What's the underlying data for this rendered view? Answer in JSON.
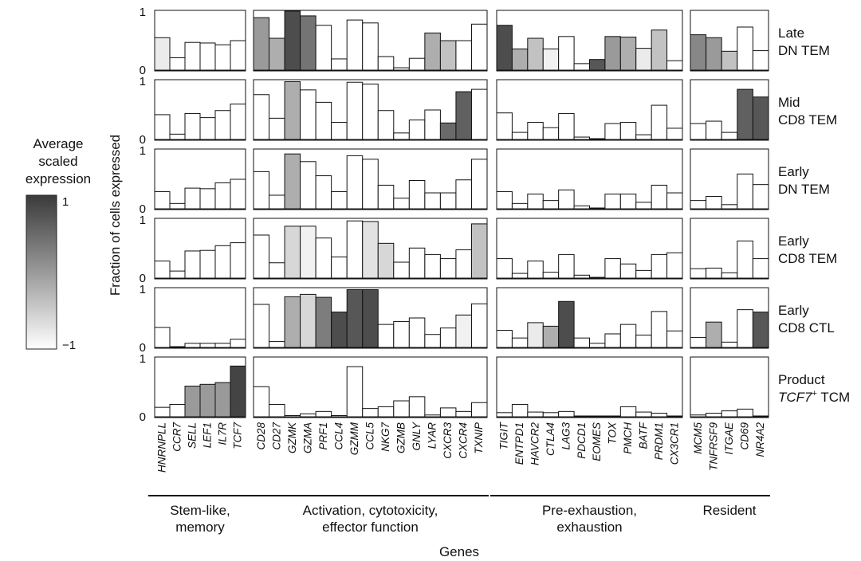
{
  "chart_data": {
    "type": "bar",
    "ylabel": "Fraction of cells expressed",
    "xlabel": "Genes",
    "ylim": [
      0,
      1
    ],
    "yticks": [
      "0",
      "1"
    ],
    "legend": {
      "title_lines": [
        "Average",
        "scaled",
        "expression"
      ],
      "max_label": "1",
      "min_label": "−1",
      "range": [
        -1,
        1
      ],
      "colors": [
        "#ffffff",
        "#9a9a9a",
        "#3a3a3a"
      ]
    },
    "groups": [
      {
        "name_lines": [
          "Stem-like,",
          "memory"
        ],
        "genes": [
          "HNRNPLL",
          "CCR7",
          "SELL",
          "LEF1",
          "IL7R",
          "TCF7"
        ]
      },
      {
        "name_lines": [
          "Activation, cytotoxicity,",
          "effector function"
        ],
        "genes": [
          "CD28",
          "CD27",
          "GZMK",
          "GZMA",
          "PRF1",
          "CCL4",
          "GZMM",
          "CCL5",
          "NKG7",
          "GZMB",
          "GNLY",
          "LYAR",
          "CXCR3",
          "CXCR4",
          "TXNIP"
        ]
      },
      {
        "name_lines": [
          "Pre-exhaustion,",
          "exhaustion"
        ],
        "genes": [
          "TIGIT",
          "ENTPD1",
          "HAVCR2",
          "CTLA4",
          "LAG3",
          "PDCD1",
          "EOMES",
          "TOX",
          "PMCH",
          "BATF",
          "PRDM1",
          "CX3CR1"
        ]
      },
      {
        "name_lines": [
          "Resident"
        ],
        "genes": [
          "MCM5",
          "TNFRSF9",
          "ITGAE",
          "CD69",
          "NR4A2"
        ]
      }
    ],
    "rows": [
      {
        "label_lines": [
          "Late",
          "DN TEM"
        ],
        "color": "#20b2a0",
        "fraction": [
          [
            0.55,
            0.21,
            0.47,
            0.46,
            0.43,
            0.5
          ],
          [
            0.89,
            0.54,
            1.0,
            0.92,
            0.76,
            0.19,
            0.85,
            0.8,
            0.23,
            0.04,
            0.2,
            0.63,
            0.5,
            0.5,
            0.78
          ],
          [
            0.76,
            0.36,
            0.54,
            0.36,
            0.57,
            0.11,
            0.18,
            0.57,
            0.56,
            0.37,
            0.68,
            0.16
          ],
          [
            0.6,
            0.55,
            0.32,
            0.73,
            0.33
          ]
        ],
        "expression": [
          [
            0.1,
            -0.6,
            -1,
            -1,
            -1,
            -1
          ],
          [
            0.5,
            0.4,
            0.9,
            0.7,
            -1,
            -1,
            -1,
            -1,
            -1,
            -1,
            -1,
            0.4,
            0.3,
            -1,
            -1
          ],
          [
            0.9,
            0.4,
            0.3,
            -0.1,
            -0.7,
            -1,
            0.85,
            0.5,
            0.4,
            0.1,
            0.3,
            -1
          ],
          [
            0.6,
            0.5,
            0.3,
            -0.7,
            -1
          ]
        ]
      },
      {
        "label_lines": [
          "Mid",
          "CD8 TEM"
        ],
        "color": "#4a6478",
        "fraction": [
          [
            0.42,
            0.09,
            0.44,
            0.37,
            0.49,
            0.6
          ],
          [
            0.76,
            0.36,
            0.98,
            0.84,
            0.63,
            0.29,
            0.97,
            0.94,
            0.49,
            0.11,
            0.33,
            0.5,
            0.28,
            0.81,
            0.85
          ],
          [
            0.45,
            0.12,
            0.29,
            0.2,
            0.44,
            0.04,
            0.01,
            0.27,
            0.29,
            0.08,
            0.58,
            0.19
          ],
          [
            0.27,
            0.31,
            0.12,
            0.85,
            0.72
          ]
        ],
        "expression": [
          [
            -0.3,
            -1,
            -1,
            -1,
            -0.7,
            -1
          ],
          [
            -0.7,
            -1,
            0.4,
            -0.2,
            -1,
            -1,
            -0.4,
            -0.5,
            -0.4,
            -1,
            -1,
            -0.5,
            0.75,
            0.8,
            -0.4
          ],
          [
            -1,
            -1,
            -1,
            -1,
            -1,
            -1,
            -1,
            -1,
            -1,
            -1,
            -0.3,
            -1
          ],
          [
            -1,
            -1,
            -1,
            0.8,
            0.85
          ]
        ]
      },
      {
        "label_lines": [
          "Early",
          "DN TEM"
        ],
        "color": "#b07088",
        "fraction": [
          [
            0.29,
            0.09,
            0.35,
            0.34,
            0.44,
            0.5
          ],
          [
            0.63,
            0.23,
            0.93,
            0.8,
            0.56,
            0.29,
            0.9,
            0.84,
            0.4,
            0.18,
            0.48,
            0.27,
            0.27,
            0.49,
            0.84
          ],
          [
            0.29,
            0.09,
            0.25,
            0.14,
            0.32,
            0.05,
            0.01,
            0.25,
            0.25,
            0.11,
            0.4,
            0.27
          ],
          [
            0.14,
            0.21,
            0.07,
            0.59,
            0.41
          ]
        ],
        "expression": [
          [
            -1,
            -1,
            -1,
            -0.7,
            -0.7,
            -1
          ],
          [
            -1,
            -1,
            0.4,
            -0.4,
            -1,
            -1,
            -1,
            -1,
            -1,
            -1,
            -1,
            -1,
            -1,
            -1,
            -0.8
          ],
          [
            -1,
            -1,
            -1,
            -1,
            -1,
            -1,
            -1,
            -1,
            -1,
            -1,
            -1,
            -1
          ],
          [
            -1,
            -1,
            -1,
            -1,
            -0.7
          ]
        ]
      },
      {
        "label_lines": [
          "Early",
          "CD8 TEM"
        ],
        "color": "#e85a60",
        "fraction": [
          [
            0.29,
            0.12,
            0.46,
            0.47,
            0.55,
            0.6
          ],
          [
            0.73,
            0.26,
            0.88,
            0.88,
            0.68,
            0.36,
            0.97,
            0.96,
            0.59,
            0.27,
            0.51,
            0.4,
            0.33,
            0.48,
            0.92
          ],
          [
            0.33,
            0.08,
            0.29,
            0.1,
            0.4,
            0.05,
            0.01,
            0.33,
            0.24,
            0.13,
            0.4,
            0.43
          ],
          [
            0.16,
            0.17,
            0.09,
            0.63,
            0.33
          ]
        ],
        "expression": [
          [
            -1,
            -1,
            -0.6,
            -0.5,
            -0.4,
            -0.7
          ],
          [
            -0.8,
            -1,
            0.2,
            -0.1,
            -1,
            -1,
            -1,
            0.0,
            0.2,
            -1,
            -1,
            -1,
            -1,
            -1,
            0.3
          ],
          [
            -1,
            -1,
            -1,
            -1,
            -1,
            -1,
            -1,
            -1,
            -1,
            -1,
            -1,
            -1
          ],
          [
            -1,
            -1,
            -1,
            -1,
            -1
          ]
        ]
      },
      {
        "label_lines": [
          "Early",
          "CD8 CTL"
        ],
        "color": "#a0409a",
        "fraction": [
          [
            0.34,
            0.01,
            0.07,
            0.07,
            0.07,
            0.14
          ],
          [
            0.73,
            0.1,
            0.86,
            0.9,
            0.85,
            0.6,
            0.98,
            0.98,
            0.39,
            0.44,
            0.5,
            0.22,
            0.33,
            0.55,
            0.74
          ],
          [
            0.29,
            0.16,
            0.42,
            0.36,
            0.78,
            0.16,
            0.07,
            0.23,
            0.39,
            0.21,
            0.61,
            0.28
          ],
          [
            0.17,
            0.43,
            0.09,
            0.64,
            0.6
          ]
        ],
        "expression": [
          [
            -1,
            -1,
            -1,
            -1,
            -1,
            -0.9
          ],
          [
            -0.6,
            -1,
            0.4,
            0.2,
            0.65,
            0.9,
            0.85,
            0.9,
            -1,
            -0.4,
            -1,
            -1,
            -0.4,
            -0.1,
            -1
          ],
          [
            -1,
            -1,
            0.1,
            0.4,
            0.9,
            -1,
            -1,
            -1,
            -0.7,
            -1,
            -0.3,
            -1
          ],
          [
            -1,
            0.4,
            -1,
            -0.6,
            0.85
          ]
        ]
      },
      {
        "label_lines": [
          "Product",
          "TCF7⁺ TCM"
        ],
        "color": "#e25a6a",
        "fraction": [
          [
            0.16,
            0.21,
            0.52,
            0.55,
            0.58,
            0.86
          ],
          [
            0.51,
            0.21,
            0.02,
            0.05,
            0.09,
            0.02,
            0.85,
            0.14,
            0.17,
            0.27,
            0.34,
            0.03,
            0.15,
            0.09,
            0.24
          ],
          [
            0.07,
            0.21,
            0.08,
            0.07,
            0.09,
            0.01,
            0.01,
            0.01,
            0.17,
            0.08,
            0.06,
            0.01
          ],
          [
            0.03,
            0.06,
            0.1,
            0.13,
            0.01
          ]
        ],
        "expression": [
          [
            -1,
            -0.2,
            0.5,
            0.5,
            0.5,
            0.95
          ],
          [
            -1,
            -1,
            -1,
            -1,
            -1,
            -1,
            -1,
            -1,
            -1,
            -1,
            -1,
            -1,
            -1,
            -1,
            -1
          ],
          [
            -1,
            -0.6,
            -1,
            -1,
            -1,
            -1,
            -1,
            -1,
            -1,
            -1,
            -1,
            -1
          ],
          [
            -1,
            -1,
            -1,
            -1,
            -1
          ]
        ]
      }
    ]
  }
}
